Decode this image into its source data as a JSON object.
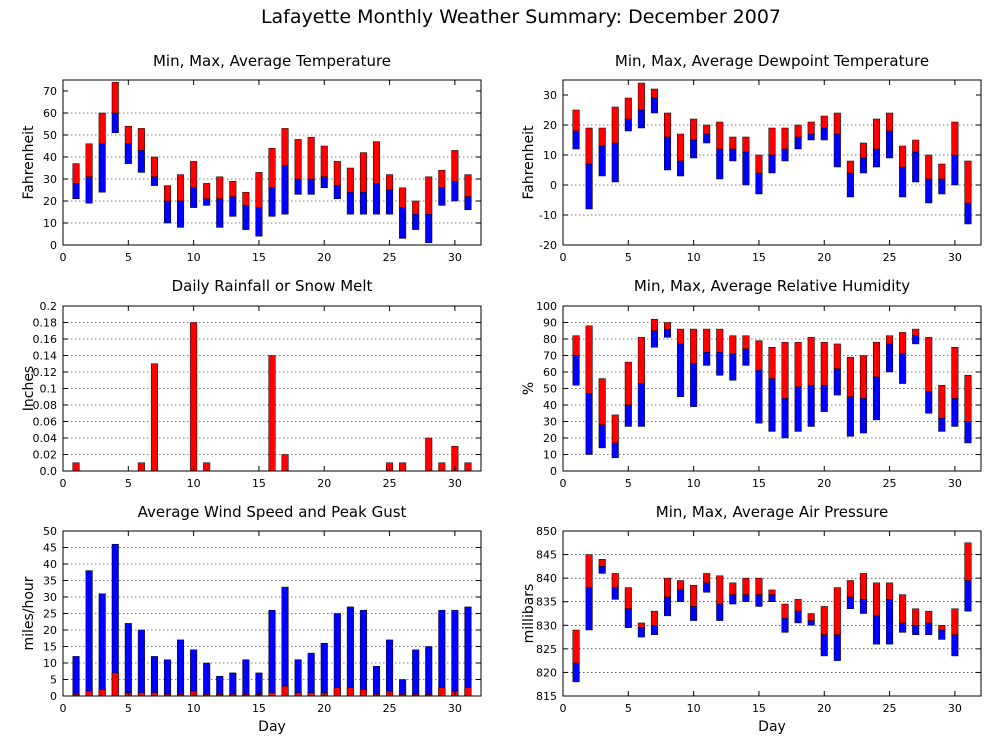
{
  "page": {
    "title": "Lafayette Monthly Weather Summary: December 2007"
  },
  "colors": {
    "high_part": "#ff0000",
    "low_part": "#0000ff",
    "grid": "#000000",
    "background": "#ffffff"
  },
  "chart_data": [
    {
      "id": "temperature",
      "type": "floating-bar",
      "title": "Min, Max, Average Temperature",
      "xlabel": "",
      "ylabel": "Fahrenheit",
      "xlim": [
        0,
        32
      ],
      "ylim": [
        0,
        75
      ],
      "xticks": [
        0,
        5,
        10,
        15,
        20,
        25,
        30
      ],
      "yticks": [
        0,
        10,
        20,
        30,
        40,
        50,
        60,
        70
      ],
      "grid": true,
      "x": [
        1,
        2,
        3,
        4,
        5,
        6,
        7,
        8,
        9,
        10,
        11,
        12,
        13,
        14,
        15,
        16,
        17,
        18,
        19,
        20,
        21,
        22,
        23,
        24,
        25,
        26,
        27,
        28,
        29,
        30,
        31
      ],
      "series": [
        {
          "key": "min",
          "values": [
            21,
            19,
            24,
            51,
            37,
            33,
            27,
            10,
            8,
            17,
            18,
            8,
            13,
            7,
            4,
            13,
            14,
            23,
            23,
            26,
            21,
            14,
            14,
            14,
            14,
            3,
            7,
            1,
            18,
            20,
            16
          ]
        },
        {
          "key": "avg",
          "values": [
            28,
            31,
            46,
            60,
            46,
            43,
            31,
            20,
            20,
            26,
            21,
            21,
            22,
            18,
            17,
            26,
            36,
            30,
            30,
            31,
            27,
            24,
            24,
            28,
            25,
            17,
            14,
            14,
            26,
            29,
            22
          ]
        },
        {
          "key": "max",
          "values": [
            37,
            46,
            60,
            74,
            54,
            53,
            40,
            27,
            32,
            38,
            28,
            31,
            29,
            24,
            33,
            44,
            53,
            48,
            49,
            45,
            38,
            35,
            42,
            47,
            32,
            26,
            20,
            31,
            34,
            43,
            32
          ]
        }
      ]
    },
    {
      "id": "dewpoint",
      "type": "floating-bar",
      "title": "Min, Max, Average Dewpoint Temperature",
      "xlabel": "",
      "ylabel": "Fahrenheit",
      "xlim": [
        0,
        32
      ],
      "ylim": [
        -20,
        35
      ],
      "xticks": [
        0,
        5,
        10,
        15,
        20,
        25,
        30
      ],
      "yticks": [
        -20,
        -10,
        0,
        10,
        20,
        30
      ],
      "grid": true,
      "x": [
        1,
        2,
        3,
        4,
        5,
        6,
        7,
        8,
        9,
        10,
        11,
        12,
        13,
        14,
        15,
        16,
        17,
        18,
        19,
        20,
        21,
        22,
        23,
        24,
        25,
        26,
        27,
        28,
        29,
        30,
        31
      ],
      "series": [
        {
          "key": "min",
          "values": [
            12,
            -8,
            3,
            1,
            18,
            19,
            24,
            5,
            3,
            9,
            14,
            2,
            8,
            0,
            -3,
            4,
            8,
            12,
            15,
            15,
            6,
            -4,
            4,
            6,
            9,
            -4,
            1,
            -6,
            -3,
            0,
            -13
          ]
        },
        {
          "key": "avg",
          "values": [
            18,
            7,
            13,
            14,
            22,
            25,
            29,
            16,
            8,
            15,
            17,
            12,
            12,
            11,
            4,
            10,
            12,
            16,
            17,
            19,
            17,
            4,
            9,
            12,
            18,
            6,
            11,
            2,
            2,
            10,
            -6
          ]
        },
        {
          "key": "max",
          "values": [
            25,
            19,
            19,
            26,
            29,
            34,
            32,
            24,
            17,
            22,
            20,
            21,
            16,
            16,
            10,
            19,
            19,
            20,
            21,
            23,
            24,
            8,
            14,
            22,
            24,
            13,
            15,
            10,
            7,
            21,
            8
          ]
        }
      ]
    },
    {
      "id": "rainfall",
      "type": "bar",
      "title": "Daily Rainfall or Snow Melt",
      "xlabel": "",
      "ylabel": "Inches",
      "xlim": [
        0,
        32
      ],
      "ylim": [
        0,
        0.2
      ],
      "xticks": [
        0,
        5,
        10,
        15,
        20,
        25,
        30
      ],
      "yticks": [
        0,
        0.02,
        0.04,
        0.06,
        0.08,
        0.1,
        0.12,
        0.14,
        0.16,
        0.18,
        0.2
      ],
      "ytick_labels": [
        "0.0",
        "0.02",
        "0.04",
        "0.06",
        "0.08",
        "0.1",
        "0.12",
        "0.14",
        "0.16",
        "0.18",
        "0.2"
      ],
      "grid": true,
      "x": [
        1,
        6,
        7,
        10,
        11,
        16,
        17,
        25,
        26,
        28,
        29,
        30,
        31
      ],
      "values": [
        0.01,
        0.01,
        0.13,
        0.18,
        0.01,
        0.14,
        0.02,
        0.01,
        0.01,
        0.04,
        0.01,
        0.03,
        0.01
      ]
    },
    {
      "id": "humidity",
      "type": "floating-bar",
      "title": "Min, Max, Average Relative Humidity",
      "xlabel": "",
      "ylabel": "%",
      "xlim": [
        0,
        32
      ],
      "ylim": [
        0,
        100
      ],
      "xticks": [
        0,
        5,
        10,
        15,
        20,
        25,
        30
      ],
      "yticks": [
        0,
        10,
        20,
        30,
        40,
        50,
        60,
        70,
        80,
        90,
        100
      ],
      "grid": true,
      "x": [
        1,
        2,
        3,
        4,
        5,
        6,
        7,
        8,
        9,
        10,
        11,
        12,
        13,
        14,
        15,
        16,
        17,
        18,
        19,
        20,
        21,
        22,
        23,
        24,
        25,
        26,
        27,
        28,
        29,
        30,
        31
      ],
      "series": [
        {
          "key": "min",
          "values": [
            52,
            10,
            14,
            8,
            27,
            27,
            75,
            81,
            45,
            39,
            64,
            58,
            55,
            64,
            29,
            24,
            20,
            24,
            27,
            36,
            46,
            21,
            23,
            31,
            60,
            53,
            77,
            35,
            24,
            27,
            17
          ]
        },
        {
          "key": "avg",
          "values": [
            70,
            47,
            28,
            17,
            40,
            53,
            85,
            86,
            77,
            65,
            72,
            72,
            71,
            74,
            61,
            56,
            44,
            51,
            52,
            52,
            62,
            45,
            44,
            57,
            77,
            71,
            82,
            48,
            32,
            44,
            30
          ]
        },
        {
          "key": "max",
          "values": [
            82,
            88,
            56,
            34,
            66,
            81,
            92,
            90,
            86,
            86,
            86,
            86,
            82,
            82,
            79,
            75,
            78,
            78,
            81,
            78,
            77,
            69,
            70,
            78,
            82,
            84,
            86,
            81,
            52,
            75,
            58
          ]
        }
      ]
    },
    {
      "id": "wind",
      "type": "bar-overlay",
      "title": "Average Wind Speed and Peak Gust",
      "xlabel": "Day",
      "ylabel": "miles/hour",
      "xlim": [
        0,
        32
      ],
      "ylim": [
        0,
        50
      ],
      "xticks": [
        0,
        5,
        10,
        15,
        20,
        25,
        30
      ],
      "yticks": [
        0,
        5,
        10,
        15,
        20,
        25,
        30,
        35,
        40,
        45,
        50
      ],
      "grid": true,
      "x": [
        1,
        2,
        3,
        4,
        5,
        6,
        7,
        8,
        9,
        10,
        11,
        12,
        13,
        14,
        15,
        16,
        17,
        18,
        19,
        20,
        21,
        22,
        23,
        24,
        25,
        26,
        27,
        28,
        29,
        30,
        31
      ],
      "series": [
        {
          "key": "gust",
          "values": [
            12,
            38,
            31,
            46,
            22,
            20,
            12,
            11,
            17,
            14,
            10,
            6,
            7,
            11,
            7,
            26,
            33,
            11,
            13,
            16,
            25,
            27,
            26,
            9,
            17,
            5,
            14,
            15,
            26,
            26,
            27
          ]
        },
        {
          "key": "avg",
          "values": [
            0.5,
            1.5,
            2,
            7,
            1,
            1,
            1,
            0.5,
            0.5,
            1.5,
            0.5,
            0.5,
            0.5,
            0.5,
            0.5,
            1,
            3,
            1,
            1,
            1,
            2.5,
            2.5,
            2,
            0.5,
            1.5,
            0.5,
            0.5,
            0.5,
            2.5,
            1.5,
            2.5
          ]
        }
      ]
    },
    {
      "id": "pressure",
      "type": "floating-bar",
      "title": "Min, Max, Average Air Pressure",
      "xlabel": "Day",
      "ylabel": "millibars",
      "xlim": [
        0,
        32
      ],
      "ylim": [
        815,
        850
      ],
      "xticks": [
        0,
        5,
        10,
        15,
        20,
        25,
        30
      ],
      "yticks": [
        815,
        820,
        825,
        830,
        835,
        840,
        845,
        850
      ],
      "grid": true,
      "x": [
        1,
        2,
        3,
        4,
        5,
        6,
        7,
        8,
        9,
        10,
        11,
        12,
        13,
        14,
        15,
        16,
        17,
        18,
        19,
        20,
        21,
        22,
        23,
        24,
        25,
        26,
        27,
        28,
        29,
        30,
        31
      ],
      "series": [
        {
          "key": "min",
          "values": [
            818,
            829,
            841,
            835.5,
            829.5,
            827.5,
            828,
            832,
            835,
            831,
            837,
            831,
            834.5,
            835,
            834,
            835,
            828.5,
            830.5,
            830,
            823.5,
            822.5,
            833.5,
            832.5,
            826,
            826,
            828.5,
            828,
            828,
            827,
            823.5,
            833
          ]
        },
        {
          "key": "avg",
          "values": [
            822,
            838,
            842.5,
            838,
            833.5,
            829.5,
            830,
            836,
            837.5,
            834,
            839,
            834.5,
            836.5,
            836.5,
            836.5,
            836.5,
            831.5,
            833,
            831,
            828,
            828,
            836,
            835.5,
            832,
            835.5,
            830.5,
            830,
            830.5,
            829,
            828,
            839.5
          ]
        },
        {
          "key": "max",
          "values": [
            829,
            845,
            844,
            841,
            838,
            830.5,
            833,
            840,
            839.5,
            838.5,
            841,
            840.5,
            839,
            840,
            840,
            837.5,
            834.5,
            835.5,
            832.5,
            834,
            838,
            839.5,
            841,
            839,
            839,
            836.5,
            833.5,
            833,
            830,
            833.5,
            847.5
          ]
        }
      ]
    }
  ]
}
